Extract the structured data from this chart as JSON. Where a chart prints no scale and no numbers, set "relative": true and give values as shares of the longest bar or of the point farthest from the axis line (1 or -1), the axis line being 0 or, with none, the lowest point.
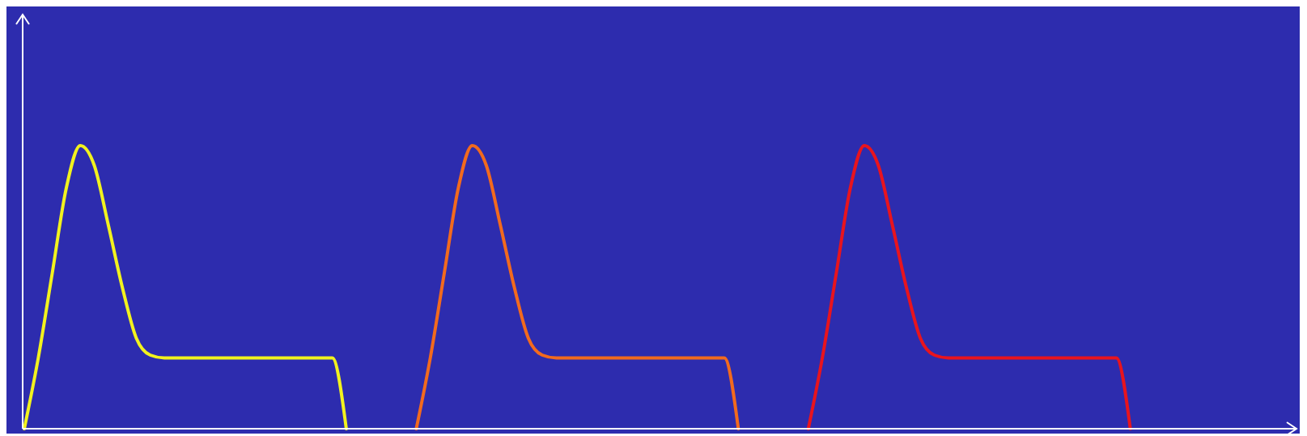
{
  "chart_data": {
    "type": "line",
    "relative": true,
    "marker": "none",
    "categories": [
      null,
      null,
      null,
      null,
      null,
      null,
      null,
      null,
      null,
      null,
      null,
      null,
      null,
      null,
      null,
      null,
      null,
      null,
      null,
      null,
      null,
      null,
      null,
      null,
      null,
      null,
      null,
      null,
      null,
      null,
      null,
      null,
      null,
      null,
      null,
      null,
      null,
      null,
      null,
      null,
      null,
      null,
      null,
      null,
      null,
      null,
      null,
      null,
      null,
      null,
      null,
      null,
      null,
      null,
      null,
      null,
      null,
      null,
      null,
      null,
      null,
      null,
      null,
      null,
      null,
      null,
      null,
      null,
      null,
      null,
      null,
      null,
      null,
      null,
      null,
      null,
      null,
      null,
      null,
      null,
      null,
      null,
      null,
      null,
      null,
      null,
      null,
      null,
      null,
      null,
      null,
      null,
      null
    ],
    "series": [
      {
        "color": "#f2f21e",
        "values": [
          0,
          0.25,
          0.55,
          0.85,
          1,
          0.93,
          0.72,
          0.5,
          0.32,
          0.26,
          0.25,
          0.25,
          0.25,
          0.25,
          0.25,
          0.25,
          0.25,
          0.25,
          0.25,
          0.25,
          0.25,
          0.25,
          0.25,
          0,
          null,
          null,
          null,
          null,
          null,
          null,
          null,
          null,
          null,
          null,
          null,
          null,
          null,
          null,
          null,
          null,
          null,
          null,
          null,
          null,
          null,
          null,
          null,
          null,
          null,
          null,
          null,
          null,
          null,
          null,
          null,
          null,
          null,
          null,
          null,
          null,
          null,
          null,
          null,
          null,
          null,
          null,
          null,
          null,
          null,
          null,
          null,
          null,
          null,
          null,
          null,
          null,
          null,
          null,
          null,
          null,
          null,
          null,
          null,
          null,
          null,
          null,
          null,
          null,
          null,
          null,
          null,
          null,
          null
        ]
      },
      {
        "color": "#f26a1e",
        "values": [
          null,
          null,
          null,
          null,
          null,
          null,
          null,
          null,
          null,
          null,
          null,
          null,
          null,
          null,
          null,
          null,
          null,
          null,
          null,
          null,
          null,
          null,
          null,
          null,
          null,
          null,
          null,
          null,
          0,
          0.25,
          0.55,
          0.85,
          1,
          0.93,
          0.72,
          0.5,
          0.32,
          0.26,
          0.25,
          0.25,
          0.25,
          0.25,
          0.25,
          0.25,
          0.25,
          0.25,
          0.25,
          0.25,
          0.25,
          0.25,
          0.25,
          0,
          null,
          null,
          null,
          null,
          null,
          null,
          null,
          null,
          null,
          null,
          null,
          null,
          null,
          null,
          null,
          null,
          null,
          null,
          null,
          null,
          null,
          null,
          null,
          null,
          null,
          null,
          null,
          null,
          null,
          null,
          null,
          null,
          null,
          null,
          null,
          null,
          null,
          null,
          null,
          null,
          null
        ]
      },
      {
        "color": "#e8141e",
        "values": [
          null,
          null,
          null,
          null,
          null,
          null,
          null,
          null,
          null,
          null,
          null,
          null,
          null,
          null,
          null,
          null,
          null,
          null,
          null,
          null,
          null,
          null,
          null,
          null,
          null,
          null,
          null,
          null,
          null,
          null,
          null,
          null,
          null,
          null,
          null,
          null,
          null,
          null,
          null,
          null,
          null,
          null,
          null,
          null,
          null,
          null,
          null,
          null,
          null,
          null,
          null,
          null,
          null,
          null,
          null,
          null,
          0,
          0.25,
          0.55,
          0.85,
          1,
          0.93,
          0.72,
          0.5,
          0.32,
          0.26,
          0.25,
          0.25,
          0.25,
          0.25,
          0.25,
          0.25,
          0.25,
          0.25,
          0.25,
          0.25,
          0.25,
          0.25,
          0.25,
          0,
          null,
          null,
          null,
          null,
          null,
          null,
          null,
          null,
          null,
          null,
          null,
          null,
          null
        ]
      }
    ]
  }
}
